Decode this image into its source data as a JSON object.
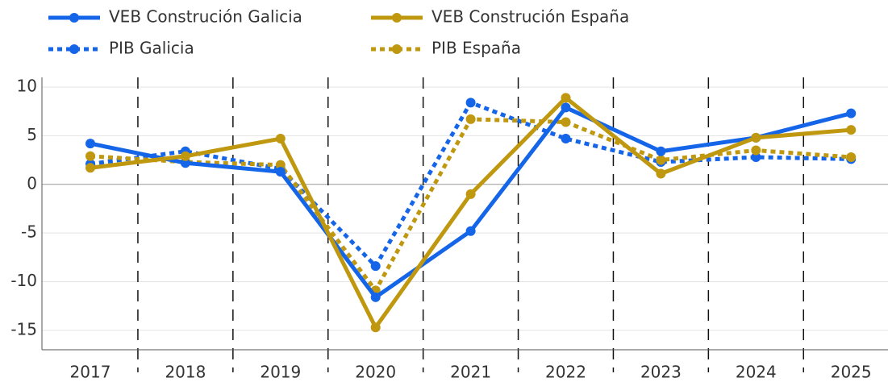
{
  "chart_data": {
    "type": "line",
    "categories": [
      "2017",
      "2018",
      "2019",
      "2020",
      "2021",
      "2022",
      "2023",
      "2024",
      "2025"
    ],
    "series": [
      {
        "name": "VEB Construción Galicia",
        "color": "#1565e8",
        "style": "solid",
        "values": [
          4.2,
          2.2,
          1.3,
          -11.6,
          -4.8,
          7.9,
          3.4,
          4.8,
          7.3
        ]
      },
      {
        "name": "VEB Construción España",
        "color": "#bf980f",
        "style": "solid",
        "values": [
          1.7,
          2.9,
          4.7,
          -14.7,
          -1.0,
          8.9,
          1.1,
          4.8,
          5.6
        ]
      },
      {
        "name": "PIB Galicia",
        "color": "#1565e8",
        "style": "dotted",
        "values": [
          2.1,
          3.4,
          1.6,
          -8.4,
          8.4,
          4.7,
          2.3,
          2.8,
          2.6
        ]
      },
      {
        "name": "PIB España",
        "color": "#bf980f",
        "style": "dotted",
        "values": [
          2.9,
          2.3,
          2.0,
          -10.9,
          6.7,
          6.4,
          2.5,
          3.5,
          2.8
        ]
      }
    ],
    "ylim": [
      -17,
      11
    ],
    "yticks": [
      -15,
      -10,
      -5,
      0,
      5,
      10
    ],
    "grid": true
  }
}
